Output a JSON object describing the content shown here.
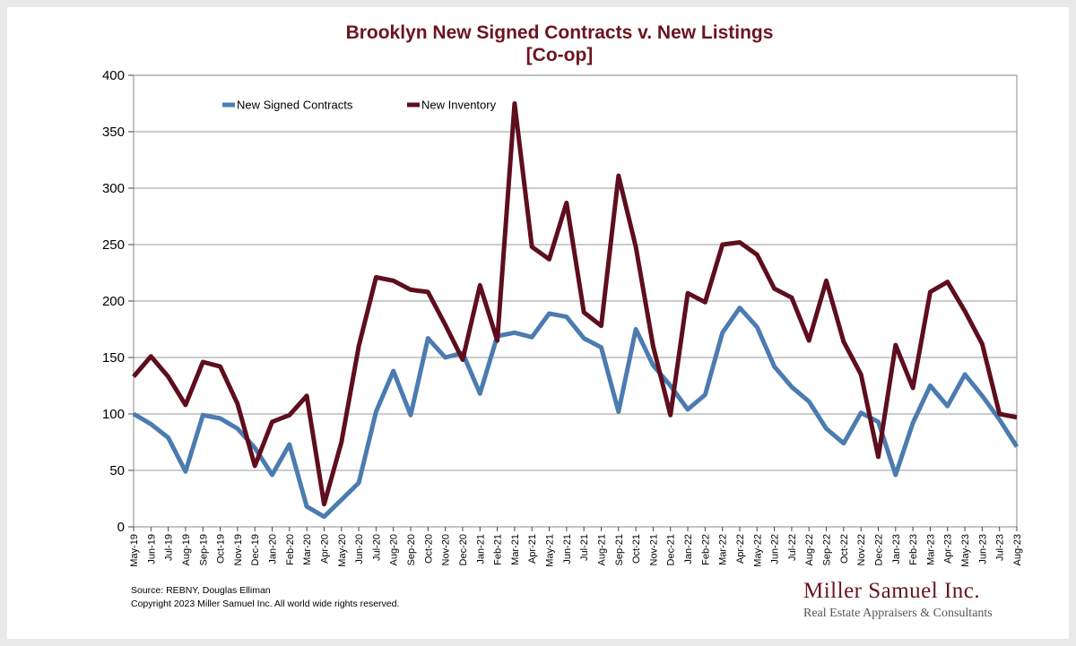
{
  "chart_data": {
    "type": "line",
    "title": "Brooklyn New Signed Contracts v. New Listings",
    "subtitle": "[Co-op]",
    "xlabel": "",
    "ylabel": "",
    "ylim": [
      0,
      400
    ],
    "yticks": [
      "0",
      "50",
      "100",
      "150",
      "200",
      "250",
      "300",
      "350",
      "400"
    ],
    "grid": true,
    "legend_placement": "top-left",
    "categories": [
      "May-19",
      "Jun-19",
      "Jul-19",
      "Aug-19",
      "Sep-19",
      "Oct-19",
      "Nov-19",
      "Dec-19",
      "Jan-20",
      "Feb-20",
      "Mar-20",
      "Apr-20",
      "May-20",
      "Jun-20",
      "Jul-20",
      "Aug-20",
      "Sep-20",
      "Oct-20",
      "Nov-20",
      "Dec-20",
      "Jan-21",
      "Feb-21",
      "Mar-21",
      "Apr-21",
      "May-21",
      "Jun-21",
      "Jul-21",
      "Aug-21",
      "Sep-21",
      "Oct-21",
      "Nov-21",
      "Dec-21",
      "Jan-22",
      "Feb-22",
      "Mar-22",
      "Apr-22",
      "May-22",
      "Jun-22",
      "Jul-22",
      "Aug-22",
      "Sep-22",
      "Oct-22",
      "Nov-22",
      "Dec-22",
      "Jan-23",
      "Feb-23",
      "Mar-23",
      "Apr-23",
      "May-23",
      "Jun-23",
      "Jul-23",
      "Aug-23"
    ],
    "series": [
      {
        "name": "New Signed Contracts",
        "color": "#4b7bb0",
        "values": [
          100,
          91,
          79,
          49,
          99,
          96,
          87,
          70,
          46,
          73,
          18,
          9,
          24,
          39,
          102,
          138,
          99,
          167,
          150,
          154,
          118,
          169,
          172,
          168,
          189,
          186,
          167,
          159,
          102,
          175,
          143,
          125,
          104,
          117,
          172,
          194,
          177,
          142,
          124,
          111,
          87,
          74,
          101,
          93,
          46,
          92,
          125,
          107,
          135,
          116,
          95,
          71
        ]
      },
      {
        "name": "New Inventory",
        "color": "#5e0e1c",
        "values": [
          133,
          151,
          133,
          108,
          146,
          142,
          109,
          54,
          93,
          99,
          116,
          20,
          75,
          160,
          221,
          218,
          210,
          208,
          179,
          148,
          214,
          165,
          375,
          248,
          237,
          287,
          190,
          178,
          311,
          248,
          160,
          99,
          207,
          199,
          250,
          252,
          241,
          211,
          203,
          165,
          218,
          164,
          135,
          62,
          161,
          123,
          208,
          217,
          191,
          162,
          100,
          97
        ]
      }
    ]
  },
  "footer": {
    "source_line": "Source: REBNY, Douglas Elliman",
    "copyright_line": "Copyright 2023 Miller Samuel Inc.  All world wide rights reserved."
  },
  "brand": {
    "name": "Miller Samuel Inc.",
    "tagline": "Real Estate Appraisers & Consultants"
  }
}
